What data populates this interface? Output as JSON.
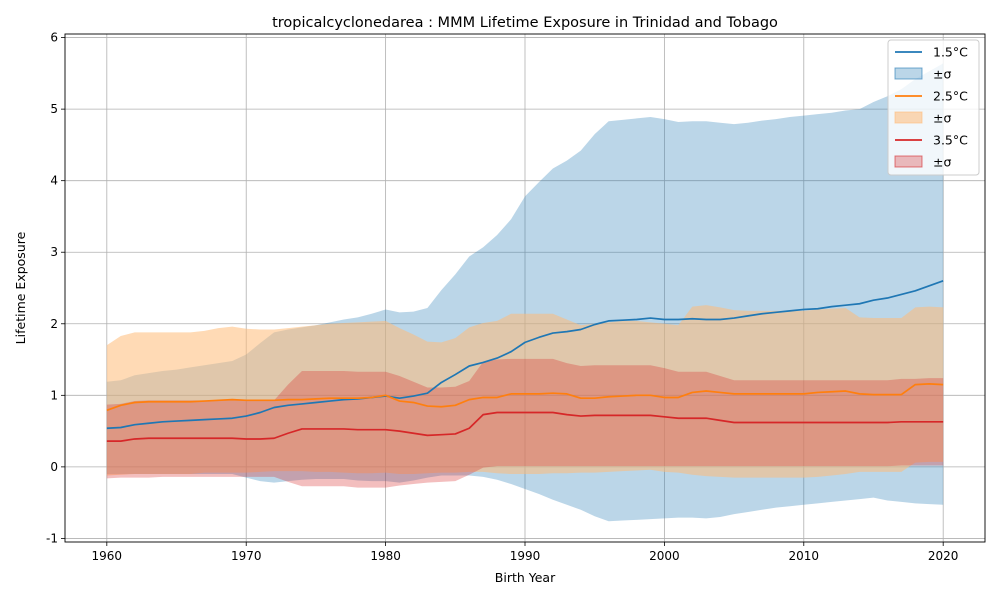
{
  "chart_data": {
    "type": "line",
    "title": "tropicalcyclonedarea : MMM Lifetime Exposure in Trinidad and Tobago",
    "xlabel": "Birth Year",
    "ylabel": "Lifetime Exposure",
    "xlim": [
      1957,
      2023
    ],
    "ylim": [
      -1.05,
      6.05
    ],
    "xticks": [
      1960,
      1970,
      1980,
      1990,
      2000,
      2010,
      2020
    ],
    "yticks": [
      -1,
      0,
      1,
      2,
      3,
      4,
      5,
      6
    ],
    "grid": true,
    "legend_position": "top-right",
    "x": [
      1960,
      1961,
      1962,
      1963,
      1964,
      1965,
      1966,
      1967,
      1968,
      1969,
      1970,
      1971,
      1972,
      1973,
      1974,
      1975,
      1976,
      1977,
      1978,
      1979,
      1980,
      1981,
      1982,
      1983,
      1984,
      1985,
      1986,
      1987,
      1988,
      1989,
      1990,
      1991,
      1992,
      1993,
      1994,
      1995,
      1996,
      1997,
      1998,
      1999,
      2000,
      2001,
      2002,
      2003,
      2004,
      2005,
      2006,
      2007,
      2008,
      2009,
      2010,
      2011,
      2012,
      2013,
      2014,
      2015,
      2016,
      2017,
      2018,
      2019,
      2020
    ],
    "series": [
      {
        "name": "1.5°C",
        "band_name": "±σ",
        "color": "#1f77b4",
        "band_color": "#1f77b4",
        "mean": [
          0.54,
          0.55,
          0.59,
          0.61,
          0.63,
          0.64,
          0.65,
          0.66,
          0.67,
          0.68,
          0.71,
          0.76,
          0.83,
          0.86,
          0.88,
          0.9,
          0.92,
          0.94,
          0.95,
          0.97,
          0.99,
          0.96,
          0.99,
          1.03,
          1.18,
          1.29,
          1.41,
          1.46,
          1.52,
          1.61,
          1.74,
          1.81,
          1.87,
          1.89,
          1.92,
          1.99,
          2.04,
          2.05,
          2.06,
          2.08,
          2.06,
          2.06,
          2.07,
          2.06,
          2.06,
          2.08,
          2.11,
          2.14,
          2.16,
          2.18,
          2.2,
          2.21,
          2.24,
          2.26,
          2.28,
          2.33,
          2.36,
          2.41,
          2.46,
          2.53,
          2.6
        ],
        "upper": [
          1.19,
          1.21,
          1.28,
          1.31,
          1.34,
          1.36,
          1.39,
          1.42,
          1.45,
          1.48,
          1.57,
          1.73,
          1.88,
          1.92,
          1.95,
          1.98,
          2.02,
          2.06,
          2.09,
          2.14,
          2.2,
          2.16,
          2.17,
          2.22,
          2.47,
          2.69,
          2.94,
          3.07,
          3.24,
          3.46,
          3.78,
          3.98,
          4.17,
          4.28,
          4.42,
          4.65,
          4.83,
          4.85,
          4.87,
          4.89,
          4.86,
          4.82,
          4.83,
          4.83,
          4.81,
          4.79,
          4.81,
          4.84,
          4.86,
          4.89,
          4.91,
          4.93,
          4.95,
          4.98,
          5.0,
          5.1,
          5.18,
          5.28,
          5.42,
          5.53,
          5.64
        ],
        "lower": [
          -0.1,
          -0.1,
          -0.1,
          -0.1,
          -0.1,
          -0.1,
          -0.1,
          -0.1,
          -0.1,
          -0.1,
          -0.15,
          -0.2,
          -0.22,
          -0.2,
          -0.18,
          -0.17,
          -0.17,
          -0.17,
          -0.19,
          -0.2,
          -0.2,
          -0.22,
          -0.19,
          -0.15,
          -0.12,
          -0.12,
          -0.12,
          -0.14,
          -0.18,
          -0.24,
          -0.31,
          -0.38,
          -0.46,
          -0.53,
          -0.6,
          -0.69,
          -0.76,
          -0.75,
          -0.74,
          -0.73,
          -0.72,
          -0.71,
          -0.71,
          -0.72,
          -0.7,
          -0.66,
          -0.63,
          -0.6,
          -0.57,
          -0.55,
          -0.53,
          -0.51,
          -0.49,
          -0.47,
          -0.45,
          -0.43,
          -0.47,
          -0.49,
          -0.51,
          -0.52,
          -0.53
        ]
      },
      {
        "name": "2.5°C",
        "band_name": "±σ",
        "color": "#ff7f0e",
        "band_color": "#ffbb78",
        "mean": [
          0.79,
          0.86,
          0.9,
          0.91,
          0.91,
          0.91,
          0.91,
          0.92,
          0.93,
          0.94,
          0.93,
          0.93,
          0.93,
          0.94,
          0.94,
          0.95,
          0.96,
          0.96,
          0.96,
          0.97,
          1.0,
          0.92,
          0.9,
          0.85,
          0.84,
          0.86,
          0.94,
          0.97,
          0.97,
          1.02,
          1.02,
          1.02,
          1.03,
          1.02,
          0.96,
          0.96,
          0.98,
          0.99,
          1.0,
          1.0,
          0.97,
          0.97,
          1.04,
          1.06,
          1.04,
          1.02,
          1.02,
          1.02,
          1.02,
          1.02,
          1.02,
          1.04,
          1.05,
          1.06,
          1.02,
          1.01,
          1.01,
          1.01,
          1.15,
          1.16,
          1.15
        ],
        "upper": [
          1.7,
          1.83,
          1.88,
          1.88,
          1.88,
          1.88,
          1.88,
          1.9,
          1.94,
          1.96,
          1.93,
          1.92,
          1.92,
          1.94,
          1.96,
          1.98,
          2.0,
          2.01,
          2.02,
          2.03,
          2.04,
          1.94,
          1.85,
          1.75,
          1.74,
          1.8,
          1.95,
          2.01,
          2.04,
          2.14,
          2.14,
          2.14,
          2.14,
          2.06,
          1.98,
          2.0,
          2.02,
          2.04,
          2.04,
          2.02,
          2.0,
          1.98,
          2.24,
          2.26,
          2.23,
          2.19,
          2.18,
          2.18,
          2.18,
          2.18,
          2.18,
          2.2,
          2.21,
          2.22,
          2.09,
          2.08,
          2.08,
          2.08,
          2.23,
          2.24,
          2.23
        ],
        "lower": [
          -0.12,
          -0.11,
          -0.1,
          -0.1,
          -0.1,
          -0.1,
          -0.1,
          -0.08,
          -0.08,
          -0.08,
          -0.08,
          -0.07,
          -0.06,
          -0.06,
          -0.06,
          -0.07,
          -0.07,
          -0.08,
          -0.09,
          -0.09,
          -0.08,
          -0.1,
          -0.1,
          -0.09,
          -0.08,
          -0.08,
          -0.07,
          -0.07,
          -0.09,
          -0.1,
          -0.1,
          -0.1,
          -0.09,
          -0.09,
          -0.08,
          -0.08,
          -0.07,
          -0.06,
          -0.05,
          -0.04,
          -0.07,
          -0.08,
          -0.11,
          -0.13,
          -0.14,
          -0.15,
          -0.15,
          -0.15,
          -0.15,
          -0.15,
          -0.15,
          -0.14,
          -0.12,
          -0.1,
          -0.07,
          -0.07,
          -0.07,
          -0.07,
          0.06,
          0.07,
          0.07
        ]
      },
      {
        "name": "3.5°C",
        "band_name": "±σ",
        "color": "#d62728",
        "band_color": "#d62728",
        "mean": [
          0.36,
          0.36,
          0.39,
          0.4,
          0.4,
          0.4,
          0.4,
          0.4,
          0.4,
          0.4,
          0.39,
          0.39,
          0.4,
          0.47,
          0.53,
          0.53,
          0.53,
          0.53,
          0.52,
          0.52,
          0.52,
          0.5,
          0.47,
          0.44,
          0.45,
          0.46,
          0.54,
          0.73,
          0.76,
          0.76,
          0.76,
          0.76,
          0.76,
          0.73,
          0.71,
          0.72,
          0.72,
          0.72,
          0.72,
          0.72,
          0.7,
          0.68,
          0.68,
          0.68,
          0.65,
          0.62,
          0.62,
          0.62,
          0.62,
          0.62,
          0.62,
          0.62,
          0.62,
          0.62,
          0.62,
          0.62,
          0.62,
          0.63,
          0.63,
          0.63,
          0.63
        ],
        "upper": [
          0.87,
          0.88,
          0.92,
          0.93,
          0.93,
          0.93,
          0.93,
          0.93,
          0.93,
          0.93,
          0.93,
          0.93,
          0.93,
          1.15,
          1.34,
          1.34,
          1.34,
          1.34,
          1.33,
          1.33,
          1.33,
          1.27,
          1.19,
          1.11,
          1.11,
          1.12,
          1.2,
          1.47,
          1.5,
          1.51,
          1.51,
          1.51,
          1.51,
          1.45,
          1.41,
          1.42,
          1.42,
          1.42,
          1.42,
          1.42,
          1.38,
          1.33,
          1.33,
          1.33,
          1.27,
          1.21,
          1.21,
          1.21,
          1.21,
          1.21,
          1.21,
          1.21,
          1.21,
          1.21,
          1.21,
          1.21,
          1.21,
          1.23,
          1.23,
          1.24,
          1.24
        ],
        "lower": [
          -0.16,
          -0.15,
          -0.15,
          -0.15,
          -0.14,
          -0.14,
          -0.14,
          -0.14,
          -0.14,
          -0.14,
          -0.14,
          -0.14,
          -0.14,
          -0.21,
          -0.27,
          -0.27,
          -0.27,
          -0.27,
          -0.29,
          -0.29,
          -0.29,
          -0.26,
          -0.24,
          -0.22,
          -0.21,
          -0.2,
          -0.11,
          -0.01,
          0.01,
          0.01,
          0.01,
          0.01,
          0.01,
          0.01,
          0.01,
          0.01,
          0.01,
          0.01,
          0.01,
          0.01,
          0.01,
          0.01,
          0.01,
          0.01,
          0.01,
          0.01,
          0.01,
          0.01,
          0.01,
          0.01,
          0.01,
          0.01,
          0.01,
          0.01,
          0.01,
          0.01,
          0.01,
          0.02,
          0.02,
          0.02,
          0.02
        ]
      }
    ]
  }
}
